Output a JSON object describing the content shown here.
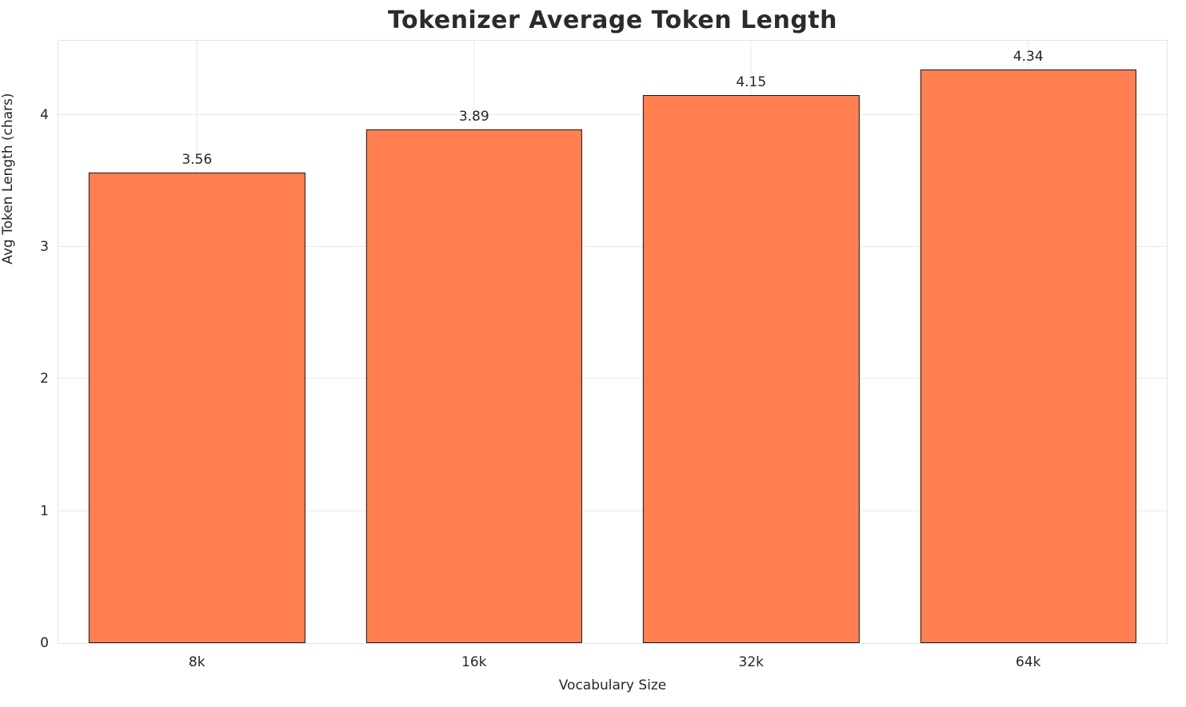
{
  "chart_data": {
    "type": "bar",
    "title": "Tokenizer Average Token Length",
    "xlabel": "Vocabulary Size",
    "ylabel": "Avg Token Length (chars)",
    "categories": [
      "8k",
      "16k",
      "32k",
      "64k"
    ],
    "values": [
      3.56,
      3.89,
      4.15,
      4.34
    ],
    "value_labels": [
      "3.56",
      "3.89",
      "4.15",
      "4.34"
    ],
    "ylim": [
      0,
      4.56
    ],
    "yticks": [
      0,
      1,
      2,
      3,
      4
    ],
    "grid": true,
    "legend": "none",
    "bar_color": "#ff7f50",
    "bar_edge_color": "#1a1a1a",
    "bar_width_fraction": 0.78
  }
}
